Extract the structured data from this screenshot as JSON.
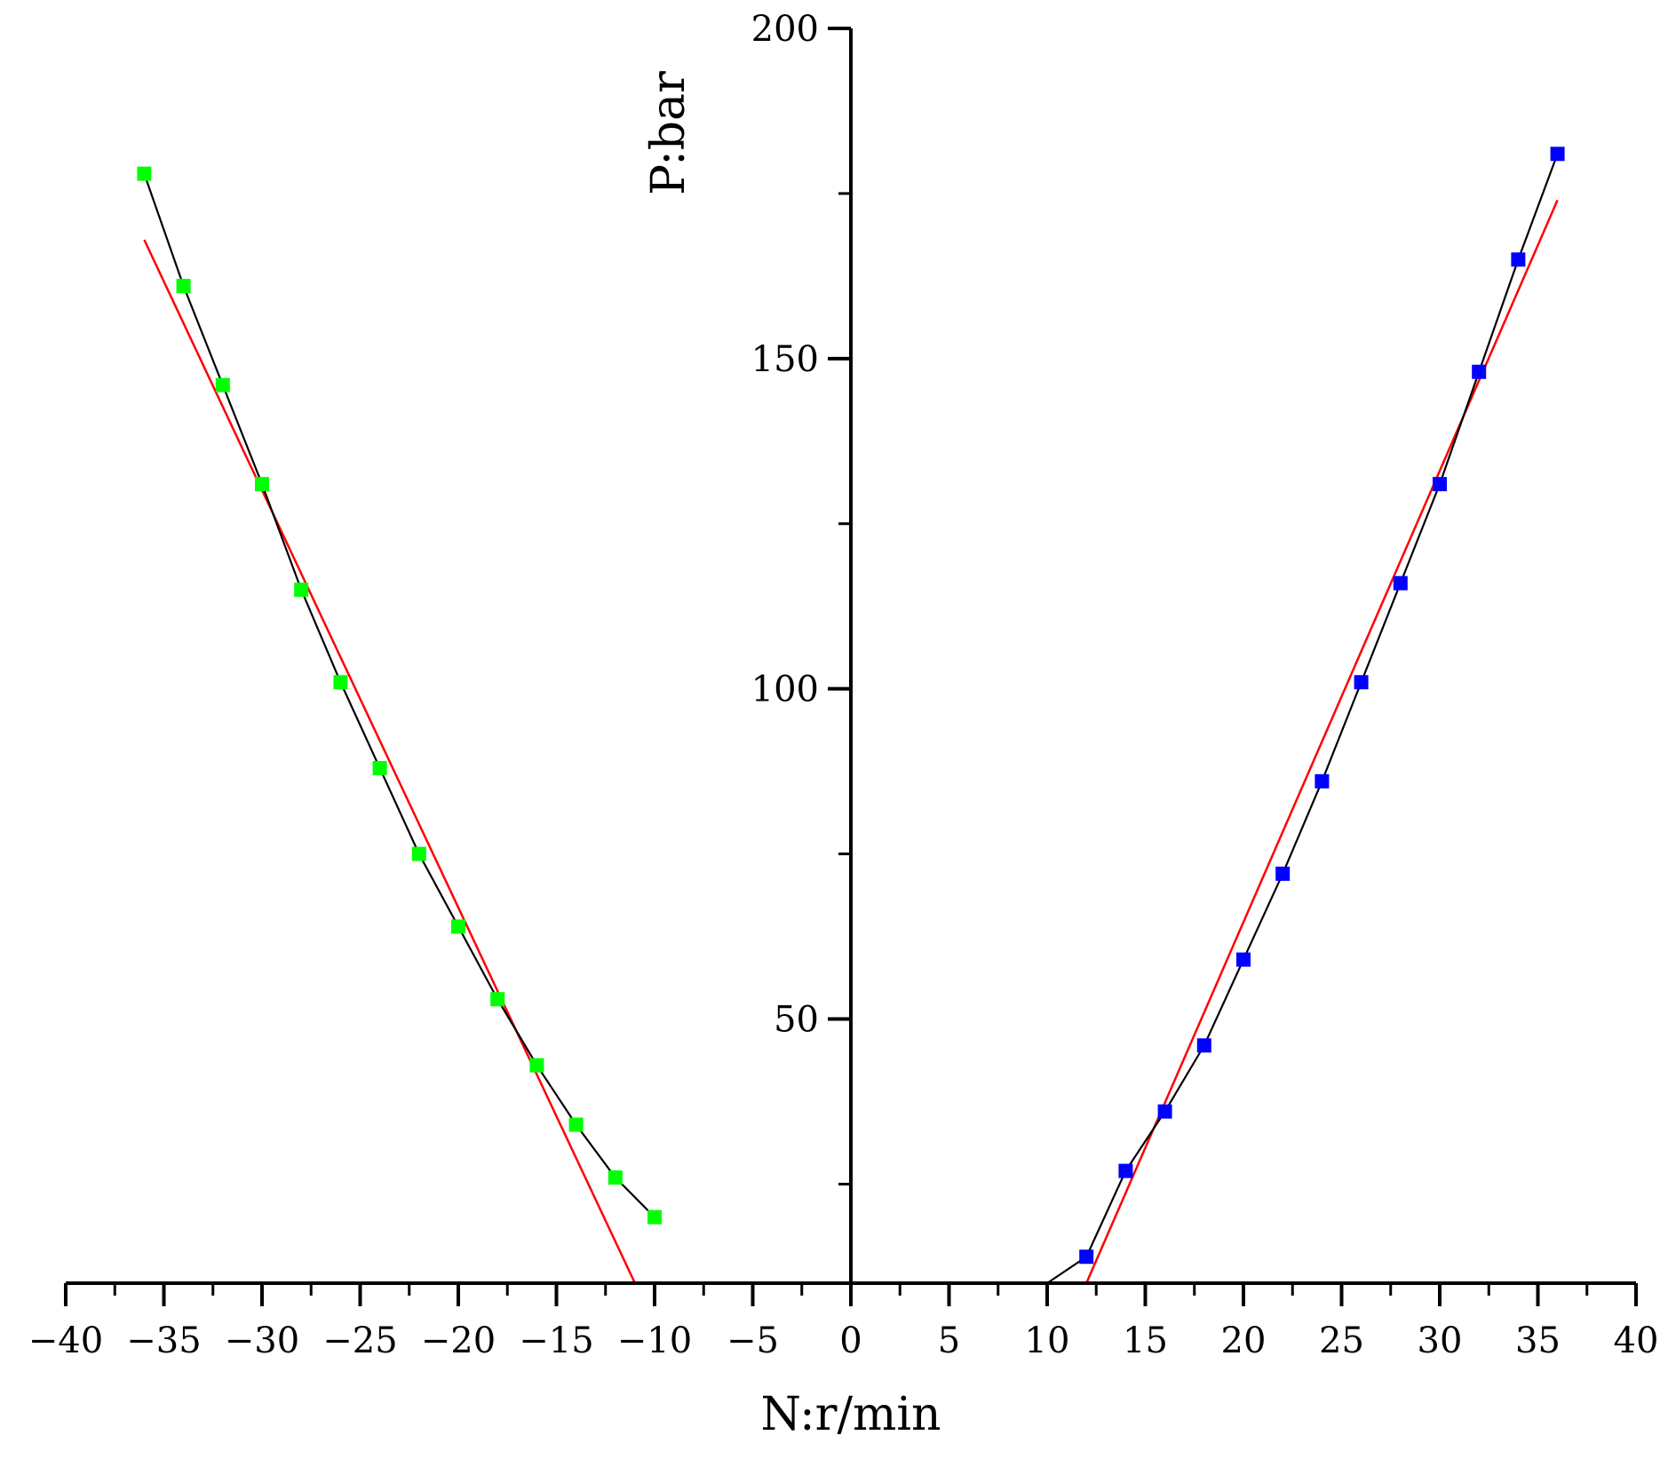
{
  "chart_data": {
    "type": "scatter",
    "xlabel": "N:r/min",
    "ylabel": "P:bar",
    "xlim": [
      -40,
      40
    ],
    "ylim": [
      10,
      200
    ],
    "x_ticks": [
      -40,
      -35,
      -30,
      -25,
      -20,
      -15,
      -10,
      -5,
      0,
      5,
      10,
      15,
      20,
      25,
      30,
      35,
      40
    ],
    "x_tick_labels": [
      "−40",
      "−35",
      "−30",
      "−25",
      "−20",
      "−15",
      "−10",
      "−5",
      "0",
      "5",
      "10",
      "15",
      "20",
      "25",
      "30",
      "35",
      "40"
    ],
    "y_major_ticks": [
      50,
      100,
      150,
      200
    ],
    "y_tick_labels": [
      "50",
      "100",
      "150",
      "200"
    ],
    "y_minor_ticks": [
      25,
      75,
      125,
      175
    ],
    "grid": false,
    "legend": "none",
    "series": [
      {
        "marker_color": "#00ff00",
        "line_color": "#000000",
        "x": [
          -36,
          -34,
          -32,
          -30,
          -28,
          -26,
          -24,
          -22,
          -20,
          -18,
          -16,
          -14,
          -12,
          -10
        ],
        "y": [
          178,
          161,
          146,
          131,
          115,
          101,
          88,
          75,
          64,
          53,
          43,
          34,
          26,
          20
        ]
      },
      {
        "marker_color": "#0000ff",
        "line_color": "#000000",
        "x": [
          10,
          12,
          14,
          16,
          18,
          20,
          22,
          24,
          26,
          28,
          30,
          32,
          34,
          36
        ],
        "y": [
          9,
          14,
          27,
          36,
          46,
          59,
          72,
          86,
          101,
          116,
          131,
          148,
          165,
          181
        ]
      }
    ],
    "fit_lines": [
      {
        "color": "#ff0000",
        "x": [
          -36,
          -11
        ],
        "y": [
          168,
          10
        ]
      },
      {
        "color": "#ff0000",
        "x": [
          12,
          36
        ],
        "y": [
          10,
          174
        ]
      }
    ]
  }
}
